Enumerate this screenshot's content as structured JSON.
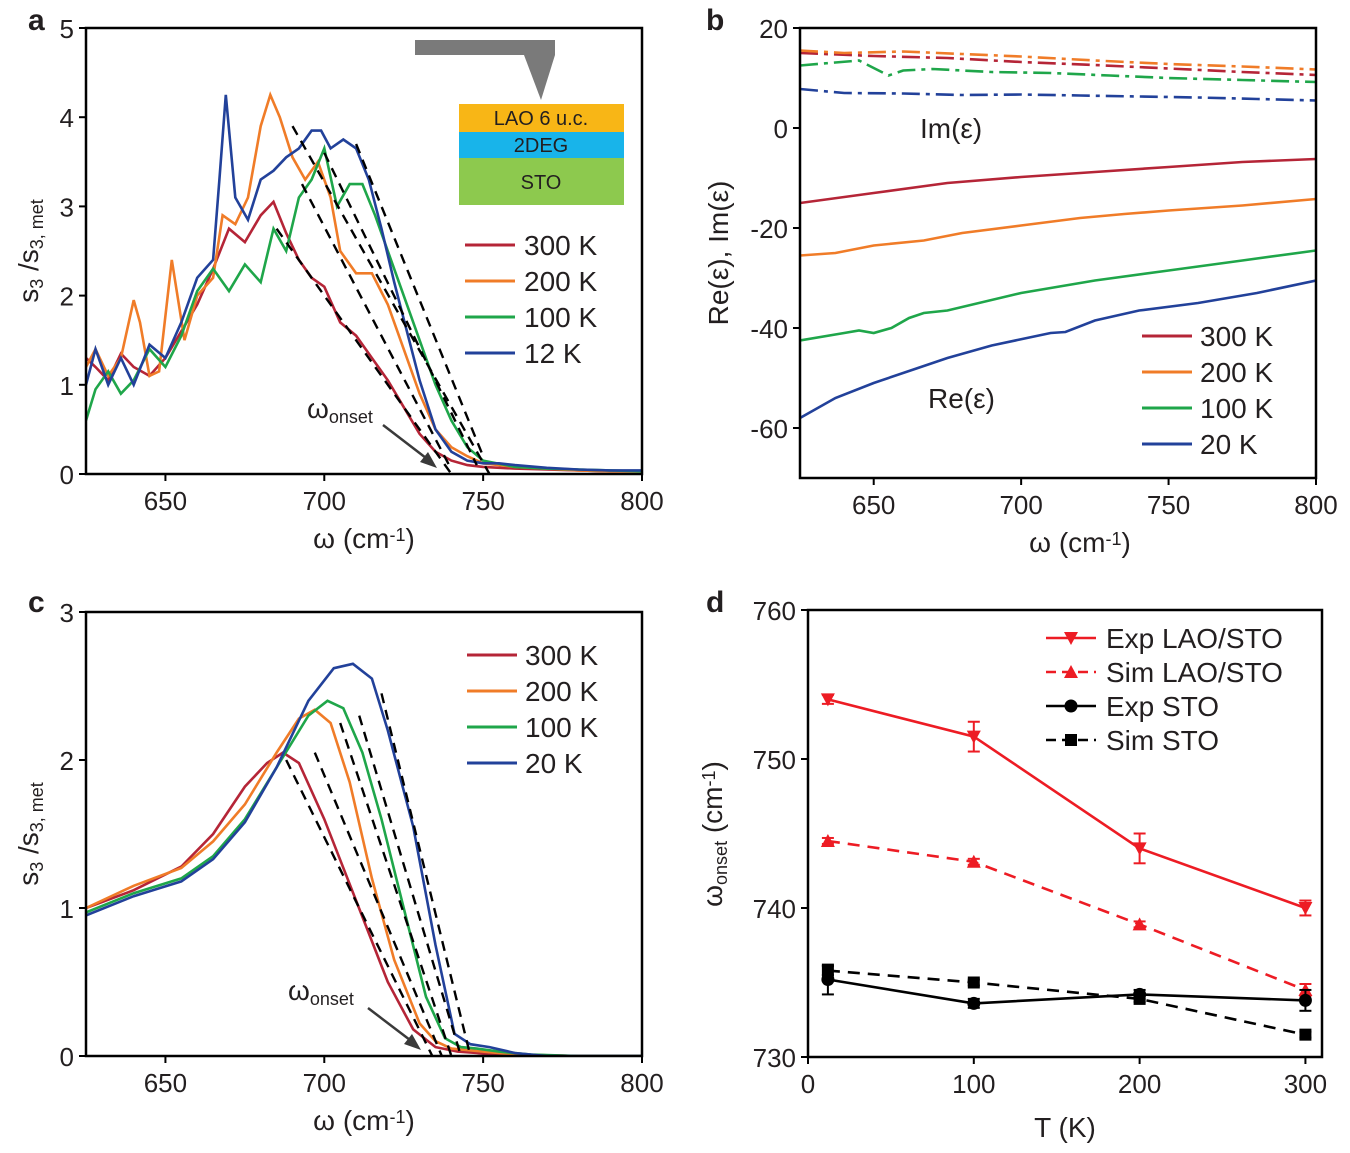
{
  "chart_data": [
    {
      "panel": "a",
      "type": "line",
      "xlabel": "ω (cm⁻¹)",
      "ylabel": "s3 /s3, met",
      "xlim": [
        625,
        800
      ],
      "ylim": [
        0,
        5
      ],
      "xticks": [
        650,
        700,
        750,
        800
      ],
      "yticks": [
        0,
        1,
        2,
        3,
        4,
        5
      ],
      "legend": [
        "300 K",
        "200 K",
        "100 K",
        "12 K"
      ],
      "annotation": "ωonset",
      "inset": {
        "layers": [
          "LAO 6 u.c.",
          "2DEG",
          "STO"
        ],
        "colors": [
          "#f8b616",
          "#18b4ea",
          "#8dc94e"
        ]
      },
      "series": [
        {
          "name": "300 K",
          "color": "#b52537",
          "x": [
            625,
            628,
            632,
            636,
            640,
            645,
            650,
            655,
            660,
            665,
            670,
            675,
            680,
            684,
            688,
            692,
            696,
            700,
            705,
            710,
            715,
            720,
            725,
            730,
            735,
            740,
            745,
            750,
            760,
            770,
            780,
            790,
            800
          ],
          "y": [
            1.3,
            1.2,
            1.05,
            1.35,
            1.2,
            1.1,
            1.3,
            1.6,
            1.9,
            2.3,
            2.75,
            2.6,
            2.9,
            3.05,
            2.7,
            2.4,
            2.2,
            2.1,
            1.7,
            1.55,
            1.3,
            1.05,
            0.75,
            0.45,
            0.25,
            0.15,
            0.1,
            0.08,
            0.06,
            0.05,
            0.04,
            0.03,
            0.03
          ]
        },
        {
          "name": "200 K",
          "color": "#f07c28",
          "x": [
            625,
            628,
            632,
            636,
            640,
            642,
            645,
            648,
            652,
            656,
            660,
            665,
            668,
            672,
            676,
            680,
            683,
            686,
            690,
            694,
            698,
            702,
            705,
            710,
            715,
            720,
            725,
            730,
            735,
            740,
            745,
            750,
            760,
            770,
            780,
            790,
            800
          ],
          "y": [
            1.2,
            1.4,
            1.1,
            1.3,
            1.95,
            1.7,
            1.1,
            1.15,
            2.4,
            1.5,
            2.0,
            2.2,
            2.9,
            2.8,
            3.1,
            3.9,
            4.25,
            4.0,
            3.55,
            3.3,
            3.5,
            3.1,
            2.5,
            2.25,
            2.25,
            1.9,
            1.4,
            0.9,
            0.5,
            0.3,
            0.2,
            0.12,
            0.08,
            0.06,
            0.04,
            0.03,
            0.03
          ]
        },
        {
          "name": "100 K",
          "color": "#1fa64a",
          "x": [
            625,
            628,
            632,
            636,
            640,
            645,
            650,
            655,
            660,
            665,
            670,
            675,
            680,
            684,
            688,
            692,
            696,
            700,
            704,
            708,
            712,
            716,
            720,
            725,
            730,
            735,
            740,
            745,
            750,
            760,
            770,
            780,
            790,
            800
          ],
          "y": [
            0.6,
            0.95,
            1.15,
            0.9,
            1.05,
            1.4,
            1.2,
            1.55,
            2.05,
            2.3,
            2.05,
            2.35,
            2.15,
            2.75,
            2.5,
            3.1,
            3.3,
            3.65,
            3.0,
            3.25,
            3.25,
            2.9,
            2.5,
            2.0,
            1.5,
            1.0,
            0.6,
            0.3,
            0.15,
            0.08,
            0.06,
            0.05,
            0.04,
            0.03
          ]
        },
        {
          "name": "12 K",
          "color": "#22419a",
          "x": [
            625,
            628,
            632,
            636,
            640,
            645,
            650,
            655,
            660,
            665,
            667,
            669,
            672,
            676,
            680,
            684,
            688,
            692,
            696,
            699,
            702,
            706,
            710,
            714,
            718,
            722,
            726,
            730,
            735,
            740,
            745,
            750,
            755,
            760,
            770,
            780,
            790,
            800
          ],
          "y": [
            1.0,
            1.4,
            1.0,
            1.3,
            1.0,
            1.45,
            1.3,
            1.7,
            2.2,
            2.4,
            3.3,
            4.25,
            3.1,
            2.85,
            3.3,
            3.4,
            3.55,
            3.65,
            3.85,
            3.85,
            3.65,
            3.75,
            3.65,
            3.3,
            2.75,
            2.15,
            1.6,
            1.05,
            0.5,
            0.25,
            0.15,
            0.12,
            0.12,
            0.1,
            0.07,
            0.05,
            0.04,
            0.04
          ]
        }
      ],
      "fits": [
        {
          "x": [
            685,
            740
          ],
          "y": [
            2.75,
            0
          ]
        },
        {
          "x": [
            693,
            740
          ],
          "y": [
            3.25,
            0.05
          ]
        },
        {
          "x": [
            700,
            748
          ],
          "y": [
            3.6,
            0.1
          ]
        },
        {
          "x": [
            710,
            750
          ],
          "y": [
            3.7,
            0.2
          ]
        },
        {
          "x": [
            690,
            752
          ],
          "y": [
            3.9,
            0
          ]
        }
      ]
    },
    {
      "panel": "b",
      "type": "line",
      "xlabel": "ω (cm⁻¹)",
      "ylabel": "Re(ε),  Im(ε)",
      "xlim": [
        625,
        800
      ],
      "ylim": [
        -70,
        20
      ],
      "xticks": [
        650,
        700,
        750,
        800
      ],
      "yticks": [
        20,
        0,
        -20,
        -40,
        -60
      ],
      "ytick_labels": [
        "20",
        "0",
        "-20",
        "-40",
        "-60"
      ],
      "legend": [
        "300 K",
        "200 K",
        "100 K",
        "20 K"
      ],
      "annotations": [
        "Im(ε)",
        "Re(ε)"
      ],
      "series": [
        {
          "name": "300 K",
          "part": "Re",
          "color": "#b52537",
          "x": [
            625,
            650,
            675,
            700,
            725,
            750,
            775,
            800
          ],
          "y": [
            -15,
            -13,
            -11,
            -9.8,
            -8.8,
            -7.8,
            -6.8,
            -6.2
          ]
        },
        {
          "name": "200 K",
          "part": "Re",
          "color": "#f07c28",
          "x": [
            625,
            637,
            650,
            667,
            680,
            700,
            720,
            735,
            750,
            775,
            800
          ],
          "y": [
            -25.5,
            -25,
            -23.5,
            -22.5,
            -21,
            -19.5,
            -18,
            -17.2,
            -16.5,
            -15.5,
            -14.2
          ]
        },
        {
          "name": "100 K",
          "part": "Re",
          "color": "#1fa64a",
          "x": [
            625,
            640,
            645,
            650,
            656,
            662,
            667,
            675,
            700,
            725,
            750,
            775,
            800
          ],
          "y": [
            -42.5,
            -41,
            -40.5,
            -41,
            -40,
            -38,
            -37,
            -36.5,
            -33,
            -30.5,
            -28.5,
            -26.5,
            -24.5
          ]
        },
        {
          "name": "20 K",
          "part": "Re",
          "color": "#22419a",
          "x": [
            625,
            637,
            650,
            665,
            675,
            690,
            710,
            715,
            725,
            740,
            760,
            780,
            800
          ],
          "y": [
            -58,
            -54,
            -51,
            -48,
            -46,
            -43.5,
            -41,
            -40.8,
            -38.5,
            -36.5,
            -35,
            -33,
            -30.5
          ]
        },
        {
          "name": "300 K",
          "part": "Im",
          "color": "#b52537",
          "x": [
            625,
            650,
            675,
            700,
            725,
            750,
            775,
            800
          ],
          "y": [
            15,
            14.4,
            14,
            13.2,
            12.6,
            11.9,
            11.2,
            10.6
          ]
        },
        {
          "name": "200 K",
          "part": "Im",
          "color": "#f07c28",
          "x": [
            625,
            640,
            660,
            680,
            700,
            725,
            750,
            775,
            800
          ],
          "y": [
            15.5,
            15,
            15.3,
            14.8,
            14.3,
            13.5,
            12.8,
            12.3,
            11.7
          ]
        },
        {
          "name": "100 K",
          "part": "Im",
          "color": "#1fa64a",
          "x": [
            625,
            645,
            650,
            655,
            660,
            670,
            690,
            710,
            730,
            750,
            775,
            800
          ],
          "y": [
            12.5,
            13.5,
            12,
            10.5,
            11.5,
            11.8,
            11.2,
            11,
            10.5,
            10,
            9.6,
            9.2
          ]
        },
        {
          "name": "20 K",
          "part": "Im",
          "color": "#22419a",
          "x": [
            625,
            640,
            660,
            680,
            700,
            720,
            740,
            760,
            780,
            800
          ],
          "y": [
            7.8,
            7.0,
            6.9,
            6.6,
            6.7,
            6.5,
            6.3,
            6.1,
            5.8,
            5.5
          ]
        }
      ]
    },
    {
      "panel": "c",
      "type": "line",
      "xlabel": "ω (cm⁻¹)",
      "ylabel": "s3 /s3, met",
      "xlim": [
        625,
        800
      ],
      "ylim": [
        0,
        3
      ],
      "xticks": [
        650,
        700,
        750,
        800
      ],
      "yticks": [
        0,
        1,
        2,
        3
      ],
      "legend": [
        "300 K",
        "200 K",
        "100 K",
        "20 K"
      ],
      "annotation": "ωonset",
      "series": [
        {
          "name": "300 K",
          "color": "#b52537",
          "x": [
            625,
            640,
            655,
            665,
            675,
            682,
            687,
            692,
            700,
            710,
            720,
            728,
            735,
            742,
            748,
            752,
            760,
            780,
            800
          ],
          "y": [
            1.0,
            1.12,
            1.28,
            1.5,
            1.82,
            1.98,
            2.05,
            1.98,
            1.6,
            1.05,
            0.5,
            0.18,
            0.06,
            0.03,
            0.02,
            0.01,
            0.01,
            0.0,
            0.0
          ]
        },
        {
          "name": "200 K",
          "color": "#f07c28",
          "x": [
            625,
            640,
            655,
            665,
            675,
            685,
            692,
            697,
            702,
            708,
            715,
            722,
            730,
            735,
            740,
            745,
            750,
            760,
            780,
            800
          ],
          "y": [
            1.0,
            1.15,
            1.27,
            1.45,
            1.7,
            2.05,
            2.28,
            2.34,
            2.25,
            1.85,
            1.2,
            0.65,
            0.22,
            0.1,
            0.05,
            0.04,
            0.03,
            0.01,
            0.0,
            0.0
          ]
        },
        {
          "name": "100 K",
          "color": "#1fa64a",
          "x": [
            625,
            640,
            655,
            665,
            675,
            685,
            695,
            701,
            706,
            712,
            718,
            725,
            732,
            738,
            743,
            748,
            755,
            765,
            780,
            800
          ],
          "y": [
            0.97,
            1.1,
            1.2,
            1.35,
            1.6,
            1.95,
            2.3,
            2.4,
            2.35,
            2.05,
            1.6,
            1.0,
            0.4,
            0.12,
            0.06,
            0.05,
            0.03,
            0.01,
            0.0,
            0.0
          ]
        },
        {
          "name": "20 K",
          "color": "#22419a",
          "x": [
            625,
            640,
            655,
            665,
            675,
            685,
            695,
            703,
            709,
            715,
            720,
            728,
            735,
            741,
            746,
            752,
            760,
            770,
            800
          ],
          "y": [
            0.95,
            1.08,
            1.18,
            1.33,
            1.58,
            1.95,
            2.4,
            2.62,
            2.65,
            2.55,
            2.2,
            1.55,
            0.75,
            0.15,
            0.08,
            0.06,
            0.02,
            0.0,
            0.0
          ]
        }
      ],
      "fits": [
        {
          "x": [
            688,
            734
          ],
          "y": [
            2.0,
            0
          ]
        },
        {
          "x": [
            697,
            737
          ],
          "y": [
            2.05,
            0
          ]
        },
        {
          "x": [
            705,
            740
          ],
          "y": [
            2.25,
            0
          ]
        },
        {
          "x": [
            711,
            743
          ],
          "y": [
            2.3,
            0
          ]
        },
        {
          "x": [
            718,
            746
          ],
          "y": [
            2.45,
            0
          ]
        }
      ]
    },
    {
      "panel": "d",
      "type": "line",
      "xlabel": "T (K)",
      "ylabel": "ωonset (cm⁻¹)",
      "xlim": [
        0,
        310
      ],
      "ylim": [
        730,
        760
      ],
      "xticks": [
        0,
        100,
        200,
        300
      ],
      "yticks": [
        730,
        740,
        750,
        760
      ],
      "legend": [
        "Exp LAO/STO",
        "Sim LAO/STO",
        "Exp STO",
        "Sim STO"
      ],
      "series": [
        {
          "name": "Exp LAO/STO",
          "color": "#ed1c24",
          "dash": false,
          "marker": "triangle-down",
          "x": [
            12,
            100,
            200,
            300
          ],
          "y": [
            754,
            751.5,
            744,
            740
          ],
          "err": [
            0.3,
            1.0,
            1.0,
            0.5
          ]
        },
        {
          "name": "Sim LAO/STO",
          "color": "#ed1c24",
          "dash": true,
          "marker": "triangle-up",
          "x": [
            12,
            100,
            200,
            300
          ],
          "y": [
            744.5,
            743.1,
            738.9,
            734.5
          ],
          "err": [
            0.2,
            0.2,
            0.2,
            0.4
          ]
        },
        {
          "name": "Exp STO",
          "color": "#000000",
          "dash": false,
          "marker": "circle",
          "x": [
            12,
            100,
            200,
            300
          ],
          "y": [
            735.2,
            733.6,
            734.2,
            733.8
          ],
          "err": [
            1.0,
            0.3,
            0.3,
            0.7
          ]
        },
        {
          "name": "Sim STO",
          "color": "#000000",
          "dash": true,
          "marker": "square",
          "x": [
            12,
            100,
            200,
            300
          ],
          "y": [
            735.8,
            735.0,
            733.9,
            731.5
          ],
          "err": [
            0.3,
            0.2,
            0.2,
            0.2
          ]
        }
      ]
    }
  ]
}
